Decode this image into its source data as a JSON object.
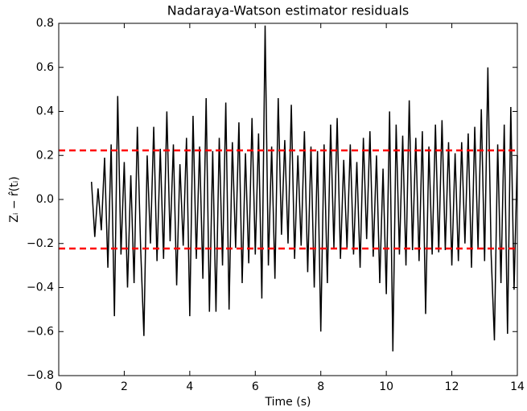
{
  "chart_data": {
    "type": "line",
    "title": "Nadaraya-Watson estimator residuals",
    "xlabel": "Time (s)",
    "ylabel": "Zᵢ − r̂(tᵢ)",
    "xlim": [
      0,
      14
    ],
    "ylim": [
      -0.8,
      0.8
    ],
    "xticks": [
      0,
      2,
      4,
      6,
      8,
      10,
      12,
      14
    ],
    "yticks": [
      {
        "value": -0.8,
        "label": "−0.8"
      },
      {
        "value": -0.6,
        "label": "−0.6"
      },
      {
        "value": -0.4,
        "label": "−0.4"
      },
      {
        "value": -0.2,
        "label": "−0.2"
      },
      {
        "value": 0,
        "label": "0.0"
      },
      0.2,
      0.4,
      0.6,
      0.8
    ],
    "reference_lines": {
      "values": [
        0.223,
        -0.223
      ],
      "color": "#ff0000"
    },
    "x": [
      1.0,
      1.1,
      1.2,
      1.3,
      1.4,
      1.5,
      1.6,
      1.7,
      1.8,
      1.9,
      2.0,
      2.1,
      2.2,
      2.3,
      2.4,
      2.5,
      2.6,
      2.7,
      2.8,
      2.9,
      3.0,
      3.1,
      3.2,
      3.3,
      3.4,
      3.5,
      3.6,
      3.7,
      3.8,
      3.9,
      4.0,
      4.1,
      4.2,
      4.3,
      4.4,
      4.5,
      4.6,
      4.7,
      4.8,
      4.9,
      5.0,
      5.1,
      5.2,
      5.3,
      5.4,
      5.5,
      5.6,
      5.7,
      5.8,
      5.9,
      6.0,
      6.1,
      6.2,
      6.3,
      6.4,
      6.5,
      6.6,
      6.7,
      6.8,
      6.9,
      7.0,
      7.1,
      7.2,
      7.3,
      7.4,
      7.5,
      7.6,
      7.7,
      7.8,
      7.9,
      8.0,
      8.1,
      8.2,
      8.3,
      8.4,
      8.5,
      8.6,
      8.7,
      8.8,
      8.9,
      9.0,
      9.1,
      9.2,
      9.3,
      9.4,
      9.5,
      9.6,
      9.7,
      9.8,
      9.9,
      10.0,
      10.1,
      10.2,
      10.3,
      10.4,
      10.5,
      10.6,
      10.7,
      10.8,
      10.9,
      11.0,
      11.1,
      11.2,
      11.3,
      11.4,
      11.5,
      11.6,
      11.7,
      11.8,
      11.9,
      12.0,
      12.1,
      12.2,
      12.3,
      12.4,
      12.5,
      12.6,
      12.7,
      12.8,
      12.9,
      13.0,
      13.1,
      13.2,
      13.3,
      13.4,
      13.5,
      13.6,
      13.7,
      13.8,
      13.9,
      14.0
    ],
    "series": [
      {
        "name": "residuals",
        "color": "#000000",
        "values": [
          0.08,
          -0.17,
          0.05,
          -0.14,
          0.19,
          -0.31,
          0.25,
          -0.53,
          0.47,
          -0.25,
          0.17,
          -0.4,
          0.11,
          -0.38,
          0.33,
          -0.22,
          -0.62,
          0.2,
          -0.2,
          0.33,
          -0.28,
          0.23,
          -0.27,
          0.4,
          -0.19,
          0.25,
          -0.39,
          0.16,
          -0.21,
          0.28,
          -0.53,
          0.38,
          -0.27,
          0.24,
          -0.36,
          0.46,
          -0.51,
          0.22,
          -0.51,
          0.28,
          -0.3,
          0.44,
          -0.5,
          0.26,
          -0.22,
          0.35,
          -0.38,
          0.21,
          -0.29,
          0.37,
          -0.25,
          0.3,
          -0.45,
          0.79,
          -0.3,
          0.24,
          -0.36,
          0.46,
          -0.16,
          0.27,
          -0.2,
          0.43,
          -0.27,
          0.2,
          -0.21,
          0.31,
          -0.33,
          0.24,
          -0.4,
          0.22,
          -0.6,
          0.25,
          -0.38,
          0.34,
          -0.22,
          0.37,
          -0.27,
          0.18,
          -0.22,
          0.25,
          -0.25,
          0.17,
          -0.31,
          0.28,
          -0.18,
          0.31,
          -0.26,
          0.2,
          -0.38,
          0.14,
          -0.43,
          0.4,
          -0.69,
          0.34,
          -0.25,
          0.29,
          -0.3,
          0.45,
          -0.23,
          0.28,
          -0.28,
          0.31,
          -0.52,
          0.24,
          -0.25,
          0.34,
          -0.24,
          0.36,
          -0.23,
          0.26,
          -0.3,
          0.21,
          -0.28,
          0.26,
          -0.2,
          0.3,
          -0.31,
          0.33,
          -0.22,
          0.41,
          -0.28,
          0.6,
          -0.25,
          -0.64,
          0.25,
          -0.38,
          0.34,
          -0.61,
          0.42,
          -0.41,
          0.2
        ]
      }
    ]
  }
}
